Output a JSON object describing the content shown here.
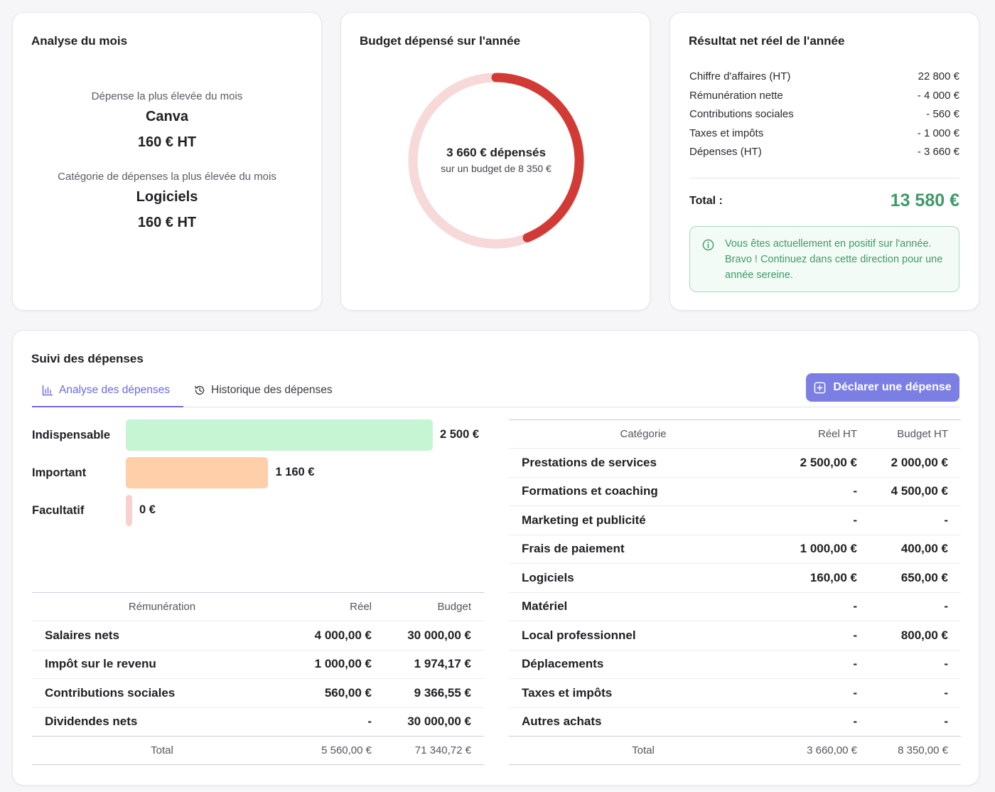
{
  "month_card": {
    "title": "Analyse du mois",
    "top_expense_label": "Dépense la plus élevée du mois",
    "top_expense_name": "Canva",
    "top_expense_amount": "160 € HT",
    "top_category_label": "Catégorie de dépenses la plus élevée du mois",
    "top_category_name": "Logiciels",
    "top_category_amount": "160 € HT"
  },
  "budget_card": {
    "title": "Budget dépensé sur l'année",
    "spent_text": "3 660 € dépensés",
    "budget_text": "sur un budget de 8 350 €",
    "spent_value": 3660,
    "budget_value": 8350,
    "color_spent": "#d23b35",
    "color_remaining": "#f6d9d8"
  },
  "result_card": {
    "title": "Résultat net réel de l'année",
    "rows": [
      {
        "label": "Chiffre d'affaires (HT)",
        "value": "22 800 €"
      },
      {
        "label": "Rémunération nette",
        "value": "- 4 000 €"
      },
      {
        "label": "Contributions sociales",
        "value": "- 560 €"
      },
      {
        "label": "Taxes et impôts",
        "value": "- 1 000 €"
      },
      {
        "label": "Dépenses (HT)",
        "value": "- 3 660 €"
      }
    ],
    "total_label": "Total :",
    "total_value": "13 580 €",
    "info_icon": "info-circle-icon",
    "info_text": "Vous êtes actuellement en positif sur l'année. Bravo ! Continuez dans cette direction pour une année sereine."
  },
  "expenses_card": {
    "title": "Suivi des dépenses",
    "tabs": [
      {
        "label": "Analyse des dépenses",
        "icon": "bar-chart-icon",
        "active": true
      },
      {
        "label": "Historique des dépenses",
        "icon": "history-icon",
        "active": false
      }
    ],
    "declare_button": {
      "label": "Déclarer une dépense",
      "icon": "plus-square-icon"
    },
    "bars": [
      {
        "label": "Indispensable",
        "value": 2500,
        "display": "2 500 €",
        "color": "#c6f5d4"
      },
      {
        "label": "Important",
        "value": 1160,
        "display": "1 160 €",
        "color": "#ffcfa9"
      },
      {
        "label": "Facultatif",
        "value": 0,
        "display": "0 €",
        "color": "#f8d0d0"
      }
    ],
    "remuneration_table": {
      "headers": [
        "Rémunération",
        "Réel",
        "Budget"
      ],
      "rows": [
        [
          "Salaires nets",
          "4 000,00 €",
          "30 000,00 €"
        ],
        [
          "Impôt sur le revenu",
          "1 000,00 €",
          "1 974,17 €"
        ],
        [
          "Contributions sociales",
          "560,00 €",
          "9 366,55 €"
        ],
        [
          "Dividendes nets",
          "-",
          "30 000,00 €"
        ]
      ],
      "total": [
        "Total",
        "5 560,00 €",
        "71 340,72 €"
      ]
    },
    "category_table": {
      "headers": [
        "Catégorie",
        "Réel HT",
        "Budget HT"
      ],
      "rows": [
        [
          "Prestations de services",
          "2 500,00 €",
          "2 000,00 €"
        ],
        [
          "Formations et coaching",
          "-",
          "4 500,00 €"
        ],
        [
          "Marketing et publicité",
          "-",
          "-"
        ],
        [
          "Frais de paiement",
          "1 000,00 €",
          "400,00 €"
        ],
        [
          "Logiciels",
          "160,00 €",
          "650,00 €"
        ],
        [
          "Matériel",
          "-",
          "-"
        ],
        [
          "Local professionnel",
          "-",
          "800,00 €"
        ],
        [
          "Déplacements",
          "-",
          "-"
        ],
        [
          "Taxes et impôts",
          "-",
          "-"
        ],
        [
          "Autres achats",
          "-",
          "-"
        ]
      ],
      "total": [
        "Total",
        "3 660,00 €",
        "8 350,00 €"
      ]
    }
  }
}
